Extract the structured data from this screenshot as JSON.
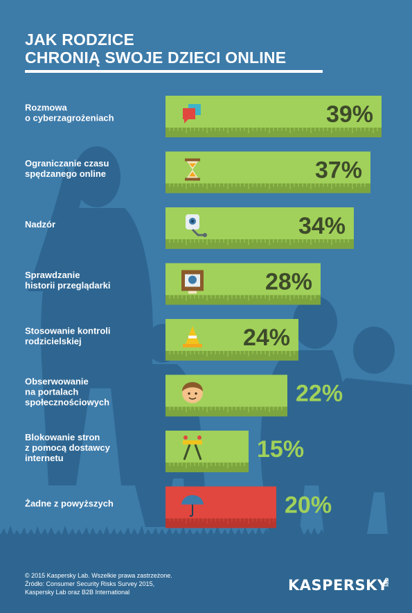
{
  "title": {
    "line1": "JAK RODZICE",
    "line2": "CHRONIĄ SWOJE DZIECI ONLINE"
  },
  "colors": {
    "background": "#3d7ba9",
    "silhouette": "#2e6691",
    "bar_green": "#a1d15a",
    "bar_green_dark": "#7da53f",
    "bar_red": "#e1473e",
    "bar_red_dark": "#b8362e",
    "value_text_dark": "#3d4a2a",
    "value_text_light": "#a1d15a"
  },
  "chart_data": {
    "type": "bar",
    "orientation": "horizontal",
    "categories": [
      [
        "Rozmowa",
        "o cyberzagrożeniach"
      ],
      [
        "Ograniczanie czasu",
        "spędzanego online"
      ],
      [
        "Nadzór"
      ],
      [
        "Sprawdzanie",
        "historii przeglądarki"
      ],
      [
        "Stosowanie kontroli",
        "rodzicielskiej"
      ],
      [
        "Obserwowanie",
        "na portalach",
        "społecznościowych"
      ],
      [
        "Blokowanie stron",
        "z pomocą dostawcy",
        "internetu"
      ],
      [
        "Żadne z powyższych"
      ]
    ],
    "values": [
      39,
      37,
      34,
      28,
      24,
      22,
      15,
      20
    ],
    "value_labels": [
      "39%",
      "37%",
      "34%",
      "28%",
      "24%",
      "22%",
      "15%",
      "20%"
    ],
    "bar_styles": [
      "green",
      "green",
      "green",
      "green",
      "green",
      "green",
      "green",
      "red"
    ],
    "icons": [
      "speech-bubbles-icon",
      "hourglass-icon",
      "webcam-icon",
      "history-window-icon",
      "traffic-cone-icon",
      "boy-face-icon",
      "road-barrier-icon",
      "umbrella-icon"
    ]
  },
  "footer": {
    "line1": "© 2015 Kaspersky Lab. Wszelkie prawa zastrzeżone.",
    "line2": "Źródło: Consumer Security Risks Survey 2015,",
    "line3": "Kaspersky Lab oraz B2B International"
  },
  "logo": {
    "text": "KASPERSKY",
    "suffix": "lab"
  }
}
